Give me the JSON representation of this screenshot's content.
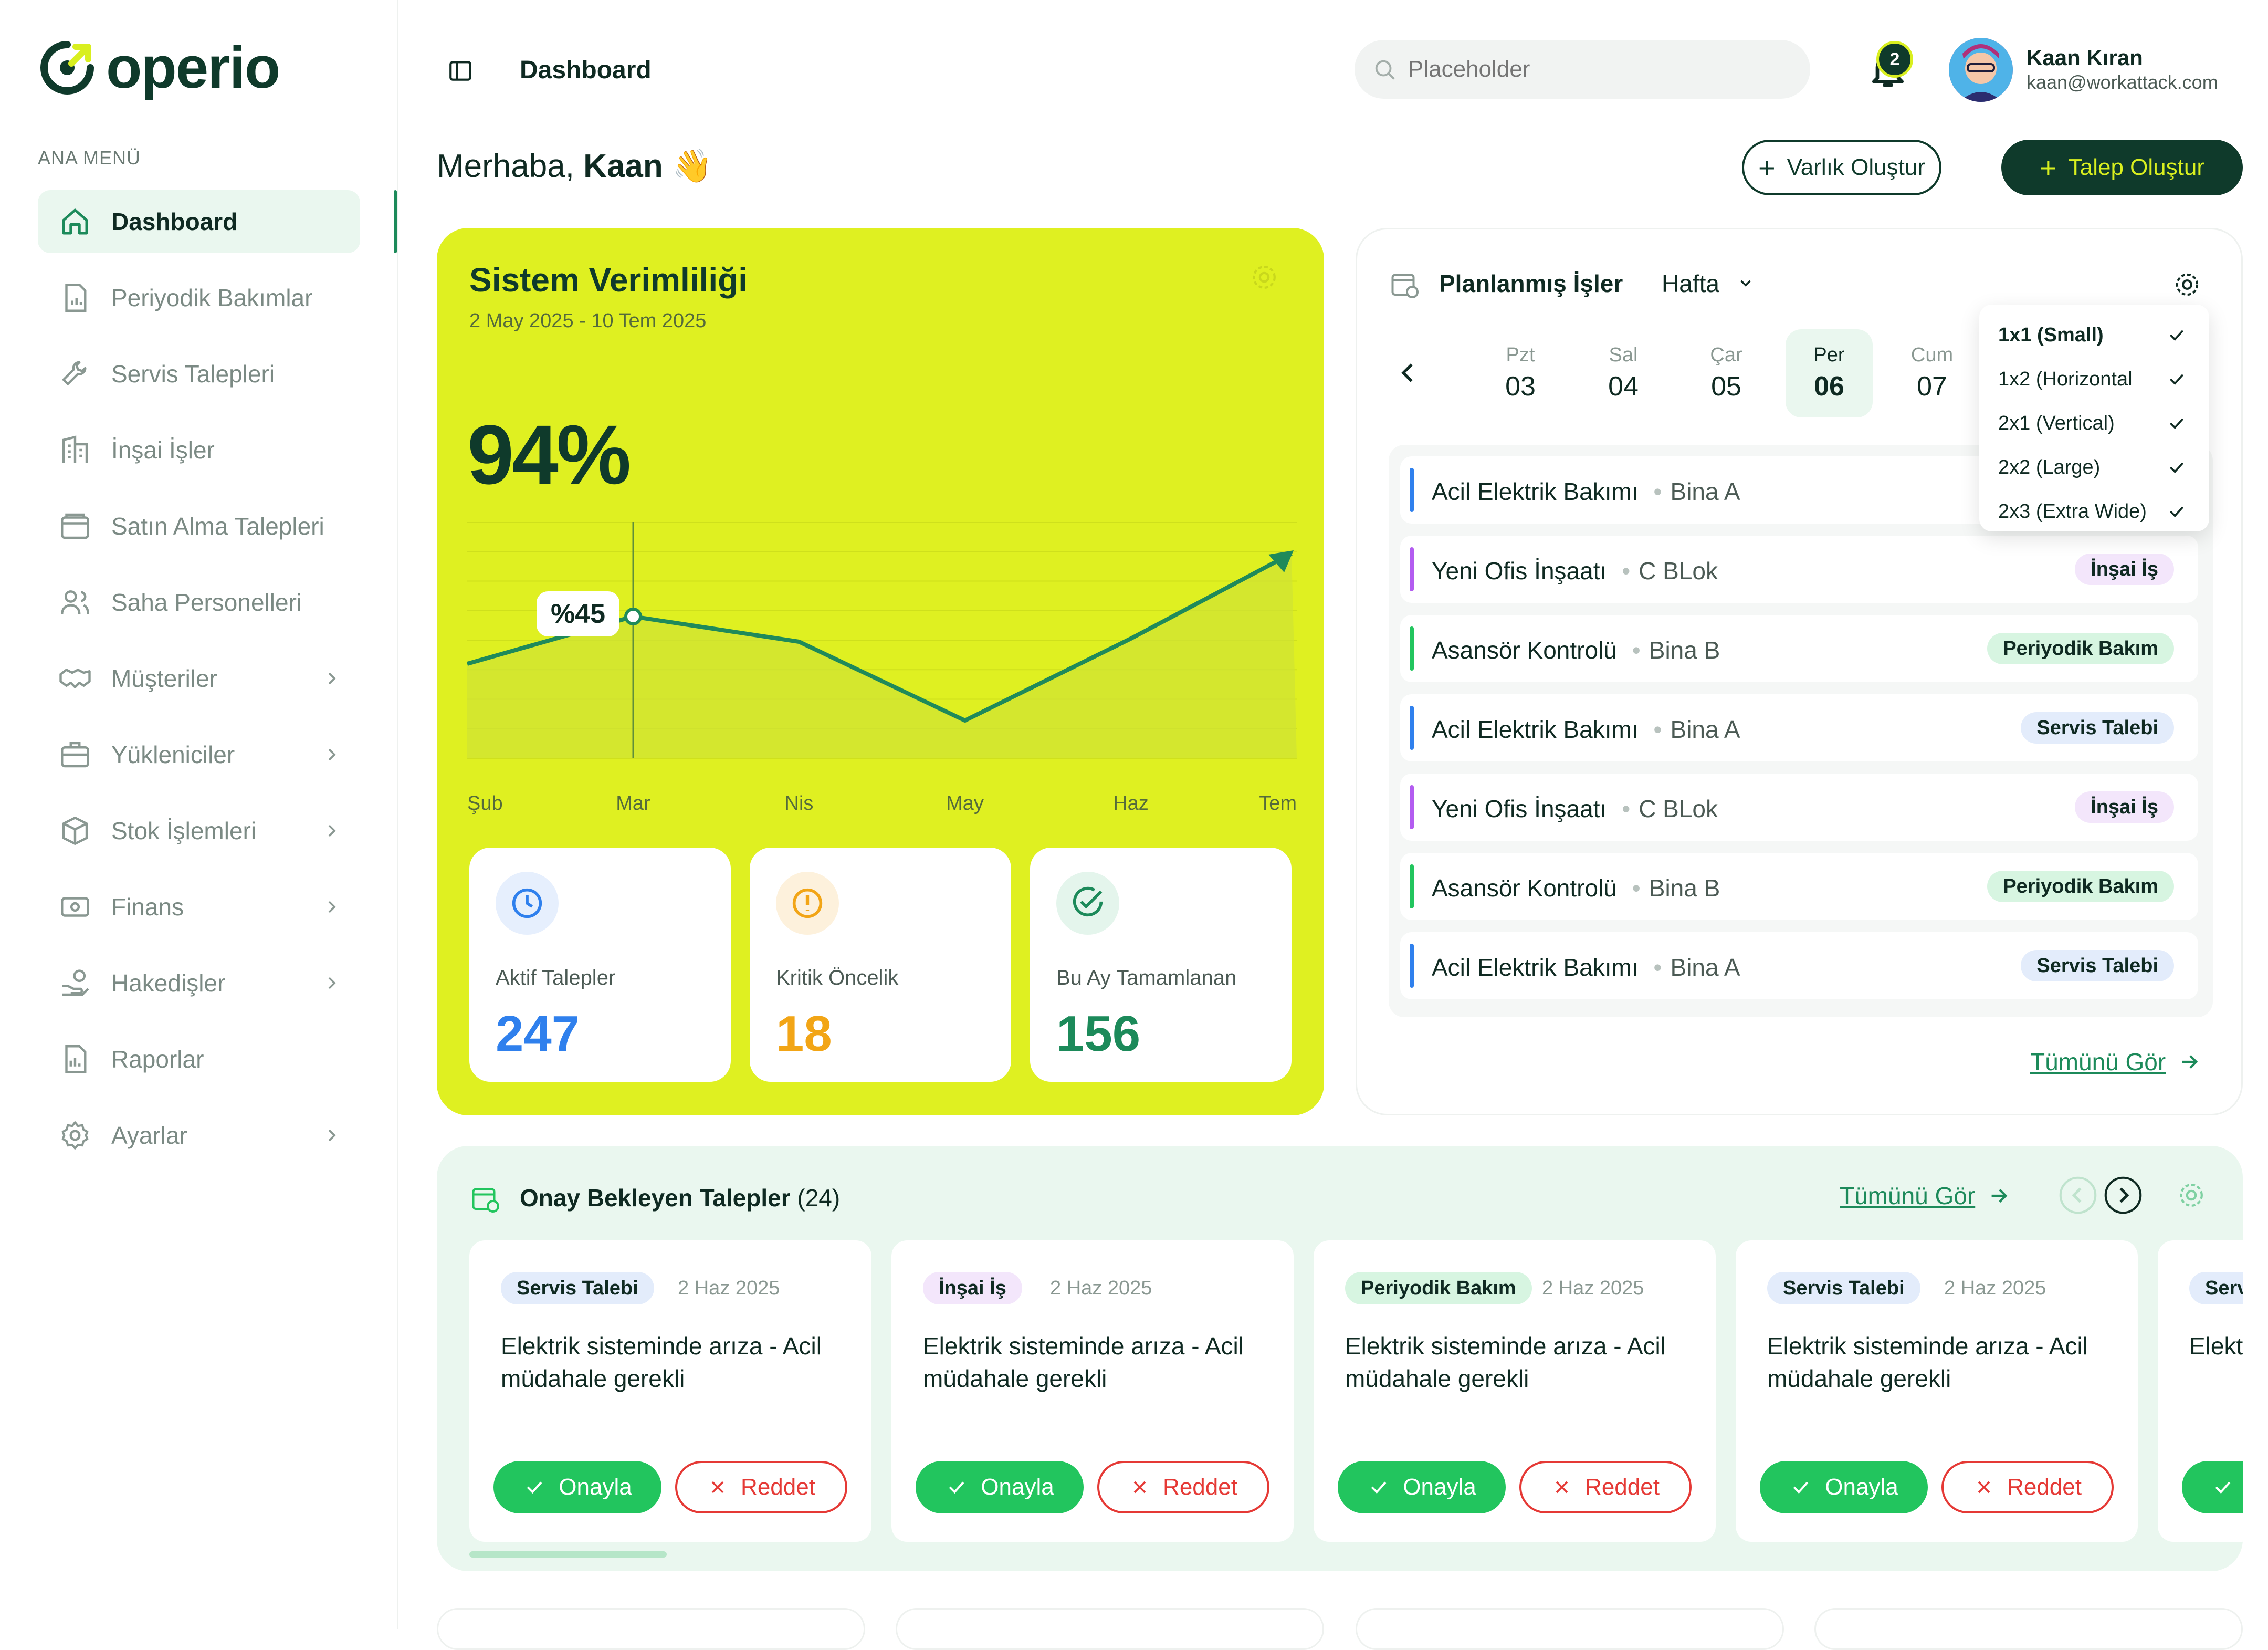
{
  "brand": {
    "name": "operio"
  },
  "sidebar": {
    "section_title": "ANA MENÜ",
    "items": [
      {
        "label": "Dashboard",
        "icon": "home-icon"
      },
      {
        "label": "Periyodik Bakımlar",
        "icon": "document-chart-icon"
      },
      {
        "label": "Servis Talepleri",
        "icon": "wrench-icon"
      },
      {
        "label": "İnşai İşler",
        "icon": "building-icon"
      },
      {
        "label": "Satın Alma Talepleri",
        "icon": "wallet-icon"
      },
      {
        "label": "Saha Personelleri",
        "icon": "users-icon"
      },
      {
        "label": "Müşteriler",
        "icon": "handshake-icon"
      },
      {
        "label": "Yükleniciler",
        "icon": "briefcase-icon"
      },
      {
        "label": "Stok İşlemleri",
        "icon": "box-icon"
      },
      {
        "label": "Finans",
        "icon": "money-icon"
      },
      {
        "label": "Hakedişler",
        "icon": "hand-coin-icon"
      },
      {
        "label": "Raporlar",
        "icon": "report-icon"
      },
      {
        "label": "Ayarlar",
        "icon": "gear-icon"
      }
    ]
  },
  "header": {
    "title": "Dashboard",
    "search_placeholder": "Placeholder",
    "notification_count": "2",
    "user_name": "Kaan Kıran",
    "user_email": "kaan@workattack.com"
  },
  "greeting": {
    "prefix": "Merhaba,",
    "name": "Kaan",
    "emoji": "👋"
  },
  "actions": {
    "create_asset": "Varlık Oluştur",
    "create_request": "Talep Oluştur"
  },
  "efficiency": {
    "title": "Sistem Verimliliği",
    "range": "2 May 2025 - 10 Tem 2025",
    "value": "94%",
    "tooltip": "%45",
    "stats": [
      {
        "label": "Aktif Talepler",
        "value": "247",
        "color": "#2f80ed"
      },
      {
        "label": "Kritik Öncelik",
        "value": "18",
        "color": "#f2a516"
      },
      {
        "label": "Bu Ay Tamamlanan",
        "value": "156",
        "color": "#1c8a5a"
      }
    ]
  },
  "chart_data": {
    "type": "area",
    "categories": [
      "Şub",
      "Mar",
      "Nis",
      "May",
      "Haz",
      "Tem"
    ],
    "values": [
      30,
      45,
      37,
      12,
      38,
      65
    ],
    "ylim": [
      0,
      75
    ],
    "grid": true,
    "highlight": {
      "category": "Mar",
      "label": "%45"
    }
  },
  "planned": {
    "title": "Planlanmış İşler",
    "period": "Hafta",
    "days": [
      {
        "name": "Pzt",
        "num": "03"
      },
      {
        "name": "Sal",
        "num": "04"
      },
      {
        "name": "Çar",
        "num": "05"
      },
      {
        "name": "Per",
        "num": "06",
        "active": true
      },
      {
        "name": "Cum",
        "num": "07"
      }
    ],
    "tasks": [
      {
        "title": "Acil Elektrik Bakımı",
        "place": "Bina A",
        "tag": "",
        "color": "#2f80ed"
      },
      {
        "title": "Yeni Ofis İnşaatı",
        "place": "C BLok",
        "tag": "İnşai İş",
        "color": "#b35cf0"
      },
      {
        "title": "Asansör Kontrolü",
        "place": "Bina B",
        "tag": "Periyodik Bakım",
        "color": "#22c55e"
      },
      {
        "title": "Acil Elektrik Bakımı",
        "place": "Bina A",
        "tag": "Servis Talebi",
        "color": "#2f80ed"
      },
      {
        "title": "Yeni Ofis İnşaatı",
        "place": "C BLok",
        "tag": "İnşai İş",
        "color": "#b35cf0"
      },
      {
        "title": "Asansör Kontrolü",
        "place": "Bina B",
        "tag": "Periyodik Bakım",
        "color": "#22c55e"
      },
      {
        "title": "Acil Elektrik Bakımı",
        "place": "Bina A",
        "tag": "Servis Talebi",
        "color": "#2f80ed"
      }
    ],
    "see_all": "Tümünü Gör",
    "size_menu": [
      "1x1 (Small)",
      "1x2 (Horizontal",
      "2x1 (Vertical)",
      "2x2 (Large)",
      "2x3 (Extra Wide)"
    ]
  },
  "approvals": {
    "title": "Onay Bekleyen Talepler",
    "count": "(24)",
    "see_all": "Tümünü Gör",
    "approve": "Onayla",
    "reject": "Reddet",
    "cards": [
      {
        "tag": "Servis Talebi",
        "date": "2 Haz 2025",
        "text": "Elektrik sisteminde arıza - Acil müdahale gerekli"
      },
      {
        "tag": "İnşai İş",
        "date": "2 Haz 2025",
        "text": "Elektrik sisteminde arıza - Acil müdahale gerekli"
      },
      {
        "tag": "Periyodik Bakım",
        "date": "2 Haz 2025",
        "text": "Elektrik sisteminde arıza - Acil müdahale gerekli"
      },
      {
        "tag": "Servis Talebi",
        "date": "2 Haz 2025",
        "text": "Elektrik sisteminde arıza - Acil müdahale gerekli"
      },
      {
        "tag": "Serv",
        "date": "",
        "text": "Elekt müda"
      }
    ]
  },
  "tag_colors": {
    "Servis Talebi": {
      "bg": "#e3ecfb",
      "fg": "#0f2a22"
    },
    "İnşai İş": {
      "bg": "#f3e6fb",
      "fg": "#0f2a22"
    },
    "Periyodik Bakım": {
      "bg": "#d7f5e1",
      "fg": "#0f2a22"
    }
  }
}
